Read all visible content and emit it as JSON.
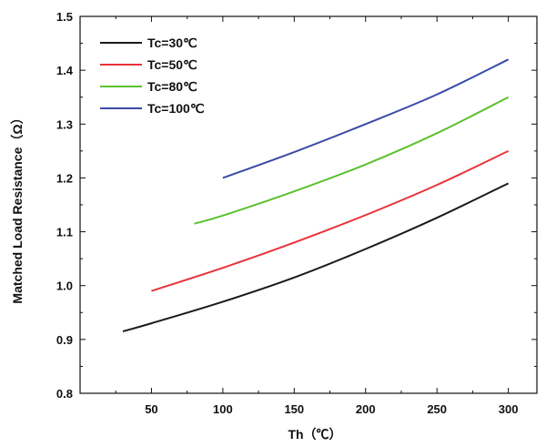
{
  "chart_data": {
    "type": "line",
    "xlabel": "Th（℃）",
    "ylabel": "Matched Load Resistance（Ω）",
    "xlim": [
      0,
      320
    ],
    "ylim": [
      0.8,
      1.5
    ],
    "x_ticks": [
      50,
      100,
      150,
      200,
      250,
      300
    ],
    "y_ticks": [
      0.8,
      0.9,
      1.0,
      1.1,
      1.2,
      1.3,
      1.4,
      1.5
    ],
    "x_tick_labels": [
      "50",
      "100",
      "150",
      "200",
      "250",
      "300"
    ],
    "y_tick_labels": [
      "0.8",
      "0.9",
      "1.0",
      "1.1",
      "1.2",
      "1.3",
      "1.4",
      "1.5"
    ],
    "grid": false,
    "legend_position": "top-left",
    "series": [
      {
        "name": "Tc=30℃",
        "color": "#1a1a1a",
        "x": [
          30,
          50,
          100,
          150,
          200,
          250,
          300
        ],
        "y": [
          0.915,
          0.93,
          0.97,
          1.015,
          1.068,
          1.126,
          1.19
        ]
      },
      {
        "name": "Tc=50℃",
        "color": "#e8333a",
        "x": [
          50,
          100,
          150,
          200,
          250,
          300
        ],
        "y": [
          0.99,
          1.033,
          1.08,
          1.131,
          1.187,
          1.25
        ]
      },
      {
        "name": "Tc=80℃",
        "color": "#5cc12e",
        "x": [
          80,
          100,
          150,
          200,
          250,
          300
        ],
        "y": [
          1.115,
          1.13,
          1.175,
          1.225,
          1.283,
          1.35
        ]
      },
      {
        "name": "Tc=100℃",
        "color": "#3b4ba6",
        "x": [
          100,
          150,
          200,
          250,
          300
        ],
        "y": [
          1.2,
          1.248,
          1.3,
          1.355,
          1.42
        ]
      }
    ]
  }
}
